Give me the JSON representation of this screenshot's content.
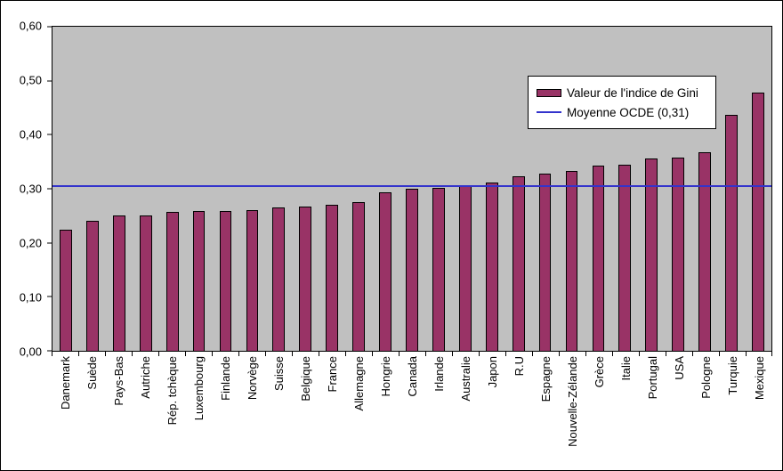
{
  "chart_data": {
    "type": "bar",
    "title": "",
    "xlabel": "",
    "ylabel": "",
    "ylim": [
      0,
      0.6
    ],
    "ytick_step": 0.1,
    "ytick_labels": [
      "0,00",
      "0,10",
      "0,20",
      "0,30",
      "0,40",
      "0,50",
      "0,60"
    ],
    "grid": false,
    "plot_background": "#C0C0C0",
    "legend_position": "upper-right",
    "categories": [
      "Danemark",
      "Suède",
      "Pays-Bas",
      "Autriche",
      "Rép. tchèque",
      "Luxembourg",
      "Finlande",
      "Norvège",
      "Suisse",
      "Belgique",
      "France",
      "Allemagne",
      "Hongrie",
      "Canada",
      "Irlande",
      "Australie",
      "Japon",
      "R.U",
      "Espagne",
      "Nouvelle-Zélande",
      "Grèce",
      "Italie",
      "Portugal",
      "USA",
      "Pologne",
      "Turquie",
      "Mexique"
    ],
    "series": [
      {
        "name": "Valeur de l'indice de Gini",
        "type": "bar",
        "color": "#993366",
        "values": [
          0.225,
          0.24,
          0.25,
          0.25,
          0.257,
          0.258,
          0.259,
          0.26,
          0.265,
          0.267,
          0.27,
          0.275,
          0.293,
          0.3,
          0.302,
          0.305,
          0.312,
          0.323,
          0.328,
          0.333,
          0.343,
          0.345,
          0.356,
          0.357,
          0.368,
          0.437,
          0.478
        ]
      },
      {
        "name": "Moyenne OCDE (0,31)",
        "type": "line",
        "color": "#3333CC",
        "value": 0.305
      }
    ]
  },
  "legend": {
    "items": [
      {
        "label": "Valeur de l'indice de Gini"
      },
      {
        "label": "Moyenne OCDE (0,31)"
      }
    ]
  }
}
